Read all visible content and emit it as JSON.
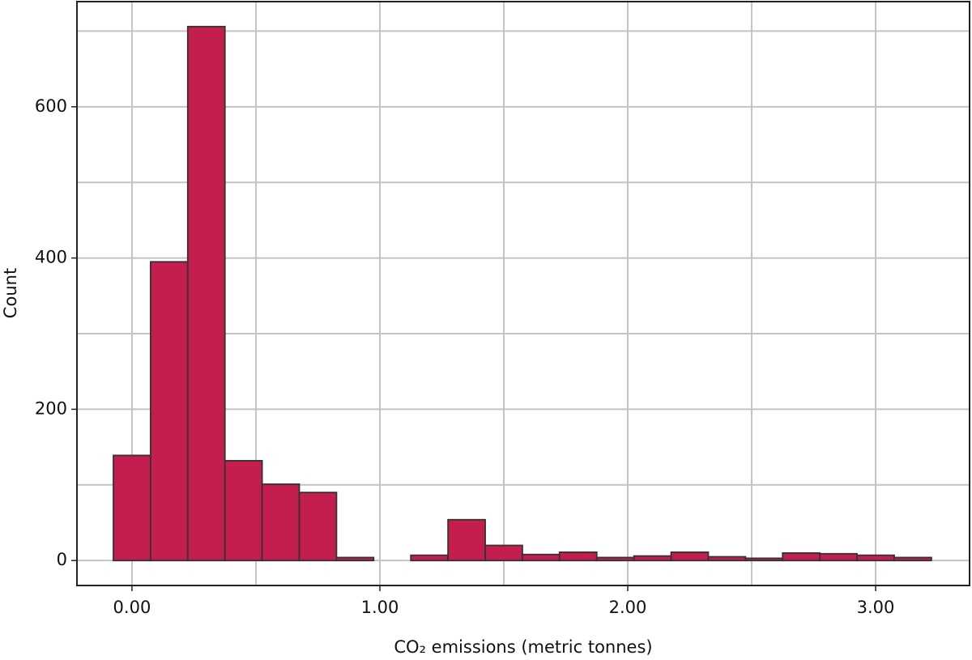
{
  "chart_data": {
    "type": "histogram",
    "xlabel": "CO₂ emissions (metric tonnes)",
    "ylabel": "Count",
    "bins": [
      -0.075,
      0.075,
      0.225,
      0.375,
      0.525,
      0.675,
      0.825,
      0.975,
      1.125,
      1.275,
      1.425,
      1.575,
      1.725,
      1.875,
      2.025,
      2.175,
      2.325,
      2.475,
      2.625,
      2.775,
      2.925,
      3.075,
      3.225
    ],
    "counts": [
      139,
      395,
      706,
      132,
      101,
      90,
      4,
      0,
      7,
      54,
      20,
      8,
      11,
      4,
      6,
      11,
      5,
      3,
      10,
      9,
      7,
      4
    ],
    "color": "#c41e4e",
    "edge_color": "#333333",
    "xlim": [
      -0.222,
      3.379
    ],
    "ylim": [
      -33,
      739
    ],
    "xticks": [
      {
        "value": 0,
        "label": "0.00"
      },
      {
        "value": 1,
        "label": "1.00"
      },
      {
        "value": 2,
        "label": "2.00"
      },
      {
        "value": 3,
        "label": "3.00"
      }
    ],
    "yticks": [
      0,
      200,
      400,
      600
    ],
    "xminor_ticks": [
      0.5,
      1.5,
      2.5
    ],
    "yminor_ticks": [
      100,
      300,
      500,
      700
    ],
    "grid": true
  }
}
